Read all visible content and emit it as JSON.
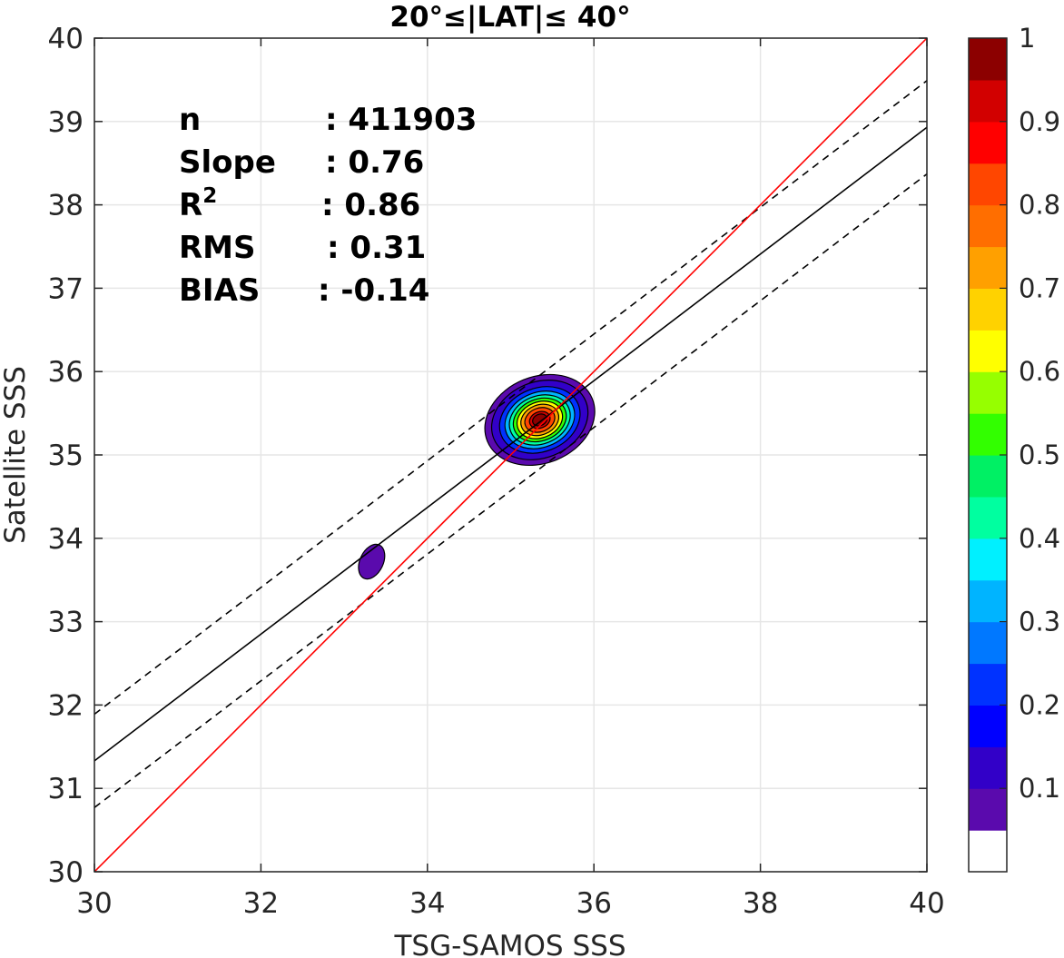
{
  "chart_data": {
    "type": "contour",
    "title": "20°≤|LAT|≤ 40°",
    "xlabel": "TSG-SAMOS SSS",
    "ylabel": "Satellite SSS",
    "xlim": [
      30,
      40
    ],
    "ylim": [
      30,
      40
    ],
    "xticks": [
      "30",
      "32",
      "34",
      "36",
      "38",
      "40"
    ],
    "yticks": [
      "30",
      "31",
      "32",
      "33",
      "34",
      "35",
      "36",
      "37",
      "38",
      "39",
      "40"
    ],
    "grid": true,
    "stats": [
      {
        "label": "n",
        "value": ": 411903"
      },
      {
        "label": "Slope",
        "value": ": 0.76"
      },
      {
        "label": "R",
        "sup": "2",
        "value": ": 0.86"
      },
      {
        "label": "RMS",
        "value": ": 0.31"
      },
      {
        "label": "BIAS",
        "value": ": -0.14"
      }
    ],
    "lines": {
      "one_to_one": {
        "color": "#ff0000",
        "x": [
          30,
          40
        ],
        "y": [
          30,
          40
        ]
      },
      "regression": {
        "color": "#000000",
        "style": "solid",
        "x": [
          30,
          40
        ],
        "y": [
          31.33,
          38.93
        ]
      },
      "upper_bound": {
        "color": "#000000",
        "style": "dashed",
        "x": [
          30,
          40
        ],
        "y": [
          31.89,
          39.49
        ]
      },
      "lower_bound": {
        "color": "#000000",
        "style": "dashed",
        "x": [
          30,
          40
        ],
        "y": [
          30.77,
          38.37
        ]
      }
    },
    "density_peak": {
      "x": 35.35,
      "y": 35.42
    },
    "secondary_blob": {
      "x": 33.33,
      "y": 33.72,
      "level": 0.05
    },
    "contour_levels": [
      0.05,
      0.1,
      0.2,
      0.3,
      0.4,
      0.5,
      0.6,
      0.7,
      0.8,
      0.9,
      0.95
    ],
    "colorbar": {
      "range": [
        0,
        1
      ],
      "tick_labels": [
        "0.1",
        "0.2",
        "0.3",
        "0.4",
        "0.5",
        "0.6",
        "0.7",
        "0.8",
        "0.9",
        "1"
      ],
      "tick_values": [
        0.1,
        0.2,
        0.3,
        0.4,
        0.5,
        0.6,
        0.7,
        0.8,
        0.9,
        1.0
      ],
      "colors": [
        "#ffffff",
        "#5a0aad",
        "#3200c8",
        "#0000ff",
        "#0032ff",
        "#0078ff",
        "#00b4ff",
        "#00f0ff",
        "#00ffa0",
        "#00f064",
        "#32ff00",
        "#96ff00",
        "#ffff00",
        "#ffd200",
        "#ffa000",
        "#ff6e00",
        "#ff4600",
        "#ff0000",
        "#d20000",
        "#8c0000"
      ]
    }
  }
}
